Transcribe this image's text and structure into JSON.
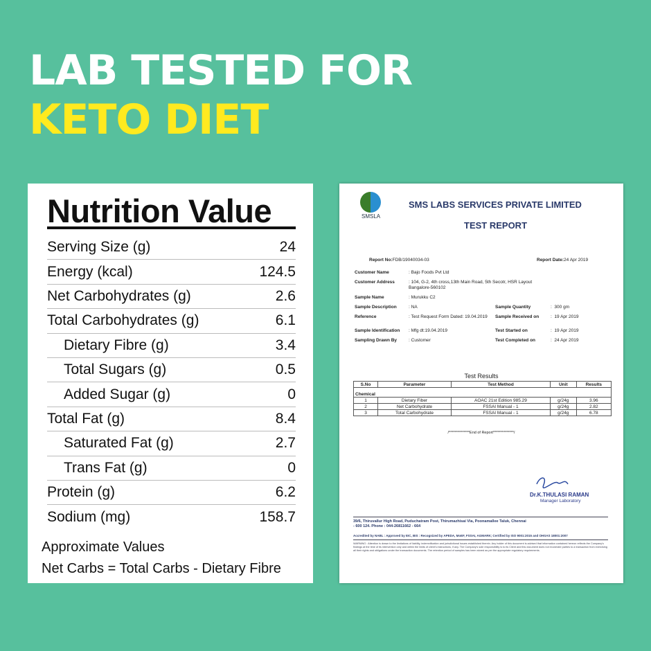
{
  "headline": {
    "line1": "LAB TESTED FOR",
    "line2": "KETO DIET",
    "line2_color": "#ffea1f"
  },
  "nutrition": {
    "title": "Nutrition Value",
    "rows": [
      {
        "label": "Serving Size (g)",
        "value": "24",
        "indent": false
      },
      {
        "label": "Energy (kcal)",
        "value": "124.5",
        "indent": false
      },
      {
        "label": "Net Carbohydrates (g)",
        "value": "2.6",
        "indent": false
      },
      {
        "label": "Total Carbohydrates (g)",
        "value": "6.1",
        "indent": false
      },
      {
        "label": "Dietary Fibre (g)",
        "value": "3.4",
        "indent": true
      },
      {
        "label": "Total Sugars (g)",
        "value": "0.5",
        "indent": true
      },
      {
        "label": "Added Sugar (g)",
        "value": "0",
        "indent": true
      },
      {
        "label": "Total Fat (g)",
        "value": "8.4",
        "indent": false
      },
      {
        "label": "Saturated Fat (g)",
        "value": "2.7",
        "indent": true
      },
      {
        "label": "Trans Fat (g)",
        "value": "0",
        "indent": true
      },
      {
        "label": "Protein (g)",
        "value": "6.2",
        "indent": false
      },
      {
        "label": "Sodium (mg)",
        "value": "158.7",
        "indent": false
      }
    ],
    "note1": "Approximate Values",
    "note2": "Net Carbs = Total Carbs - Dietary Fibre"
  },
  "report": {
    "logo_text": "SMSLA",
    "company": "SMS LABS SERVICES PRIVATE LIMITED",
    "title": "TEST REPORT",
    "report_no_label": "Report No:",
    "report_no": "FDB/19040034-03",
    "report_date_label": "Report Date:",
    "report_date": "24 Apr 2019",
    "left_fields": [
      {
        "label": "Customer Name",
        "value": "Bajo Foods Pvt Ltd"
      },
      {
        "label": "Customer Address",
        "value": "104, G-2, 4th cross,13th Main Road, 5th Secotr, HSR Layout Bangalore-560102"
      },
      {
        "label": "Sample Name",
        "value": "Murukku C2"
      },
      {
        "label": "Sample Description",
        "value": "NA"
      },
      {
        "label": "Reference",
        "value": "Test Request Form Dated: 19.04.2019"
      },
      {
        "label": "Sample Identification",
        "value": "Mfg dt:19.04.2019"
      },
      {
        "label": "Sampling Drawn By",
        "value": "Customer"
      }
    ],
    "right_fields": [
      {
        "label": "Sample Quantity",
        "value": "300 gm"
      },
      {
        "label": "Sample Received on",
        "value": "19 Apr 2019"
      },
      {
        "label": "Test Started on",
        "value": "19 Apr 2019"
      },
      {
        "label": "Test Completed on",
        "value": "24 Apr 2019"
      }
    ],
    "results_title": "Test Results",
    "headers": [
      "S.No",
      "Parameter",
      "Test Method",
      "Unit",
      "Results"
    ],
    "group": "Chemical",
    "results": [
      [
        "1",
        "Dietary Fiber",
        "AOAC 21st Edition 985.29",
        "g/24g",
        "3.96"
      ],
      [
        "2",
        "Net Carbohydrate",
        "FSSAI Manual - 1",
        "g/24g",
        "2.82"
      ],
      [
        "3",
        "Total Carbohydrate",
        "FSSAI Manual - 1",
        "g/24g",
        "6.78"
      ]
    ],
    "end": "/**************End of Report**************/",
    "signatory": "Dr.K.THULASI RAMAN",
    "signatory_role": "Manager Laboratory",
    "address": "39/6, Thiruvallur High Road, Puduchatram Post, Thirumazhisai Via, Poonamallee Taluk, Chennai - 600 124. Phone : 044-26811662 - 664",
    "accreditation": "Accredited by NABL : Approved by EIC, BIS : Recognized by APEDA, MoEF, FSSAI, AGMARK; Certified by ISO 9001:2015 and OHSAS 18001:2007",
    "warning": "WARNING : Attention is drawn to the limitations of liability, indemnification and jurisdictional issues established therein. Any holder of this document is advised that information contained hereon reflects the Company's findings at the time of its intervention only and within the limits of client's instructions, if any. The Company's sole responsibility is to its Client and this document does not exonerate parties to a transaction from exercising all their rights and obligations under the transaction documents. The retention period of samples has been stored as per the appropriate regulatory requirements."
  }
}
